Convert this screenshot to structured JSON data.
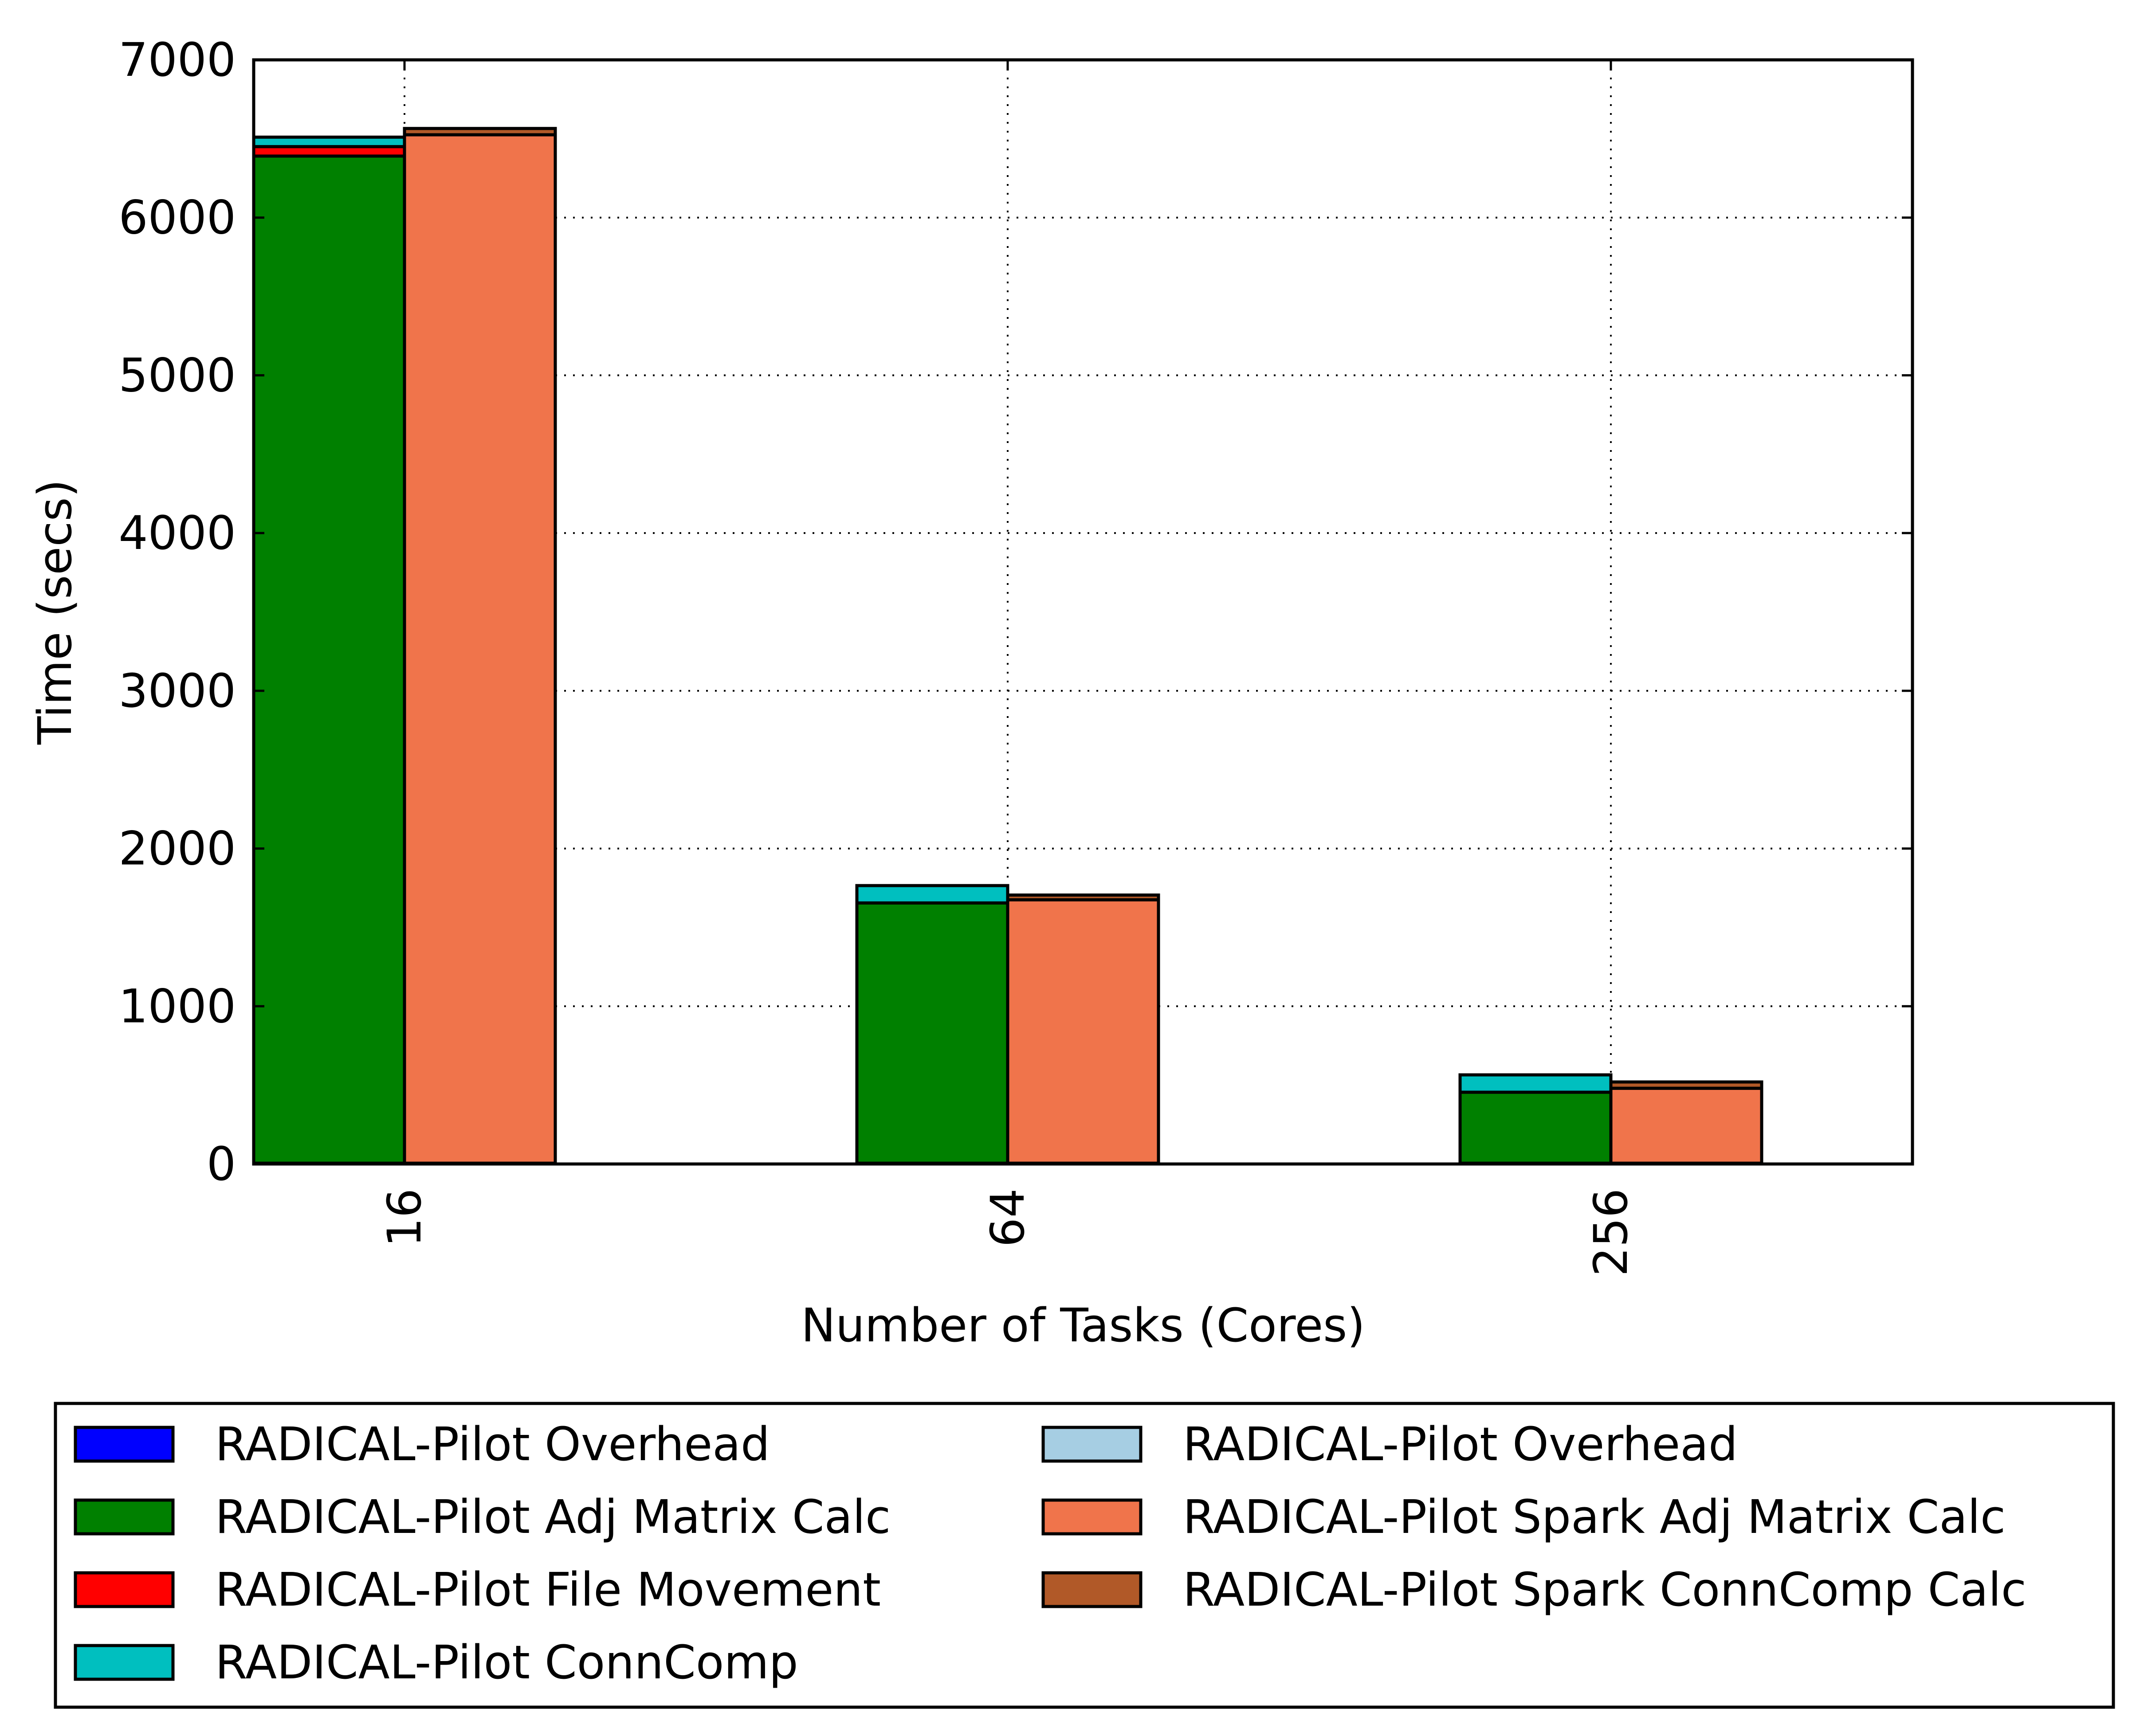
{
  "chart_data": {
    "type": "bar",
    "stacked": true,
    "grouped": true,
    "xlabel": "Number of Tasks (Cores)",
    "ylabel": "Time (secs)",
    "categories": [
      "16",
      "64",
      "256"
    ],
    "ylim": [
      0,
      7000
    ],
    "yticks": [
      "0",
      "1000",
      "2000",
      "3000",
      "4000",
      "5000",
      "6000",
      "7000"
    ],
    "grid": true,
    "legend_position": "bottom",
    "groups": [
      {
        "series": [
          {
            "name": "RADICAL-Pilot Overhead",
            "color": "#0000ff",
            "values": [
              5,
              5,
              5
            ]
          },
          {
            "name": "RADICAL-Pilot Adj Matrix Calc",
            "color": "#008000",
            "values": [
              6385,
              1650,
              450
            ]
          },
          {
            "name": "RADICAL-Pilot File Movement",
            "color": "#ff0000",
            "values": [
              60,
              0,
              0
            ]
          },
          {
            "name": "RADICAL-Pilot ConnComp",
            "color": "#00bfbf",
            "values": [
              60,
              110,
              110
            ]
          }
        ]
      },
      {
        "series": [
          {
            "name": "RADICAL-Pilot Overhead",
            "color": "#a6cee3",
            "values": [
              5,
              5,
              5
            ]
          },
          {
            "name": "RADICAL-Pilot Spark Adj Matrix Calc",
            "color": "#f0744b",
            "values": [
              6520,
              1670,
              475
            ]
          },
          {
            "name": "RADICAL-Pilot Spark ConnComp Calc",
            "color": "#b15928",
            "values": [
              40,
              30,
              40
            ]
          }
        ]
      }
    ]
  }
}
